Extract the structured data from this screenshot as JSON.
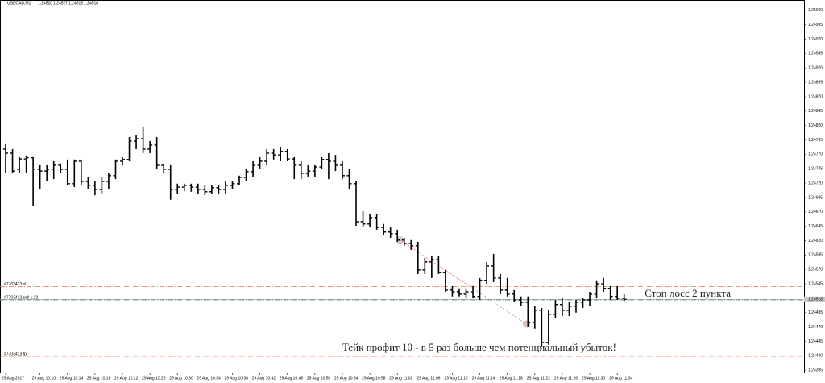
{
  "chart_data": {
    "type": "ohlc",
    "symbol": "USDCAD,M1",
    "header_ohlc": [
      "1.24520",
      "1.24527",
      "1.24515",
      "1.24518"
    ],
    "bars": [
      [
        1.24779,
        1.24789,
        1.24737,
        1.24772
      ],
      [
        1.24772,
        1.24779,
        1.24737,
        1.24741
      ],
      [
        1.24744,
        1.24765,
        1.24737,
        1.24762
      ],
      [
        1.24762,
        1.24768,
        1.24737,
        1.24764
      ],
      [
        1.24764,
        1.24765,
        1.24681,
        1.24744
      ],
      [
        1.24744,
        1.24751,
        1.24709,
        1.24741
      ],
      [
        1.24741,
        1.24751,
        1.24723,
        1.24744
      ],
      [
        1.24744,
        1.24758,
        1.24727,
        1.24751
      ],
      [
        1.24751,
        1.24754,
        1.24737,
        1.24744
      ],
      [
        1.24744,
        1.24761,
        1.24716,
        1.24719
      ],
      [
        1.24719,
        1.24761,
        1.24713,
        1.24758
      ],
      [
        1.24758,
        1.24761,
        1.24716,
        1.24723
      ],
      [
        1.24723,
        1.2473,
        1.24709,
        1.24716
      ],
      [
        1.24716,
        1.24723,
        1.24699,
        1.24709
      ],
      [
        1.24709,
        1.2473,
        1.24702,
        1.24723
      ],
      [
        1.24723,
        1.24737,
        1.24709,
        1.24733
      ],
      [
        1.24733,
        1.24761,
        1.24727,
        1.24758
      ],
      [
        1.24758,
        1.24765,
        1.24751,
        1.24761
      ],
      [
        1.24761,
        1.248,
        1.24758,
        1.24793
      ],
      [
        1.24793,
        1.24803,
        1.24779,
        1.24797
      ],
      [
        1.24797,
        1.24817,
        1.24772,
        1.24779
      ],
      [
        1.24779,
        1.24793,
        1.24772,
        1.24786
      ],
      [
        1.24786,
        1.248,
        1.24744,
        1.24751
      ],
      [
        1.24751,
        1.24751,
        1.24737,
        1.24744
      ],
      [
        1.24744,
        1.24751,
        1.24691,
        1.24709
      ],
      [
        1.24709,
        1.24719,
        1.24702,
        1.24713
      ],
      [
        1.24713,
        1.24719,
        1.24706,
        1.24716
      ],
      [
        1.24716,
        1.24719,
        1.24705,
        1.24713
      ],
      [
        1.24713,
        1.24719,
        1.24702,
        1.24709
      ],
      [
        1.24709,
        1.24716,
        1.24699,
        1.24705
      ],
      [
        1.24705,
        1.24716,
        1.24702,
        1.24712
      ],
      [
        1.24712,
        1.24716,
        1.24702,
        1.24709
      ],
      [
        1.24709,
        1.24723,
        1.24702,
        1.24716
      ],
      [
        1.24716,
        1.24723,
        1.24709,
        1.24719
      ],
      [
        1.24719,
        1.24733,
        1.24716,
        1.2473
      ],
      [
        1.2473,
        1.24744,
        1.24723,
        1.2474
      ],
      [
        1.2474,
        1.24758,
        1.2473,
        1.24751
      ],
      [
        1.24751,
        1.24765,
        1.24744,
        1.24758
      ],
      [
        1.24758,
        1.24779,
        1.24751,
        1.24772
      ],
      [
        1.24772,
        1.24779,
        1.24761,
        1.24769
      ],
      [
        1.24769,
        1.24783,
        1.24758,
        1.24775
      ],
      [
        1.24775,
        1.24779,
        1.24758,
        1.24762
      ],
      [
        1.24762,
        1.24765,
        1.24727,
        1.24751
      ],
      [
        1.24751,
        1.24758,
        1.24727,
        1.24737
      ],
      [
        1.24737,
        1.24751,
        1.2473,
        1.24741
      ],
      [
        1.24741,
        1.24751,
        1.2473,
        1.24748
      ],
      [
        1.24748,
        1.24765,
        1.24744,
        1.24761
      ],
      [
        1.24761,
        1.24772,
        1.24727,
        1.24758
      ],
      [
        1.24758,
        1.24769,
        1.24741,
        1.24751
      ],
      [
        1.24751,
        1.24758,
        1.24727,
        1.24733
      ],
      [
        1.24733,
        1.24744,
        1.24709,
        1.24719
      ],
      [
        1.24719,
        1.24723,
        1.24646,
        1.24653
      ],
      [
        1.24653,
        1.24671,
        1.24643,
        1.24649
      ],
      [
        1.24649,
        1.24667,
        1.24643,
        1.2466
      ],
      [
        1.2466,
        1.24667,
        1.24639,
        1.24643
      ],
      [
        1.24643,
        1.24649,
        1.24629,
        1.24635
      ],
      [
        1.24635,
        1.24643,
        1.24625,
        1.24632
      ],
      [
        1.24632,
        1.24639,
        1.24618,
        1.24621
      ],
      [
        1.24621,
        1.24625,
        1.24611,
        1.24615
      ],
      [
        1.24615,
        1.24621,
        1.24604,
        1.24611
      ],
      [
        1.24611,
        1.24618,
        1.24562,
        1.24569
      ],
      [
        1.24569,
        1.2459,
        1.24562,
        1.24583
      ],
      [
        1.24583,
        1.24593,
        1.24555,
        1.24587
      ],
      [
        1.24587,
        1.24593,
        1.24562,
        1.24565
      ],
      [
        1.24565,
        1.24569,
        1.24531,
        1.24534
      ],
      [
        1.24534,
        1.24541,
        1.24523,
        1.24531
      ],
      [
        1.24531,
        1.24537,
        1.24523,
        1.24527
      ],
      [
        1.24527,
        1.24537,
        1.2452,
        1.24531
      ],
      [
        1.24531,
        1.24541,
        1.2452,
        1.24523
      ],
      [
        1.24523,
        1.24555,
        1.24517,
        1.24551
      ],
      [
        1.24551,
        1.24583,
        1.24545,
        1.24576
      ],
      [
        1.24576,
        1.24597,
        1.24548,
        1.24555
      ],
      [
        1.24555,
        1.24562,
        1.24527,
        1.24534
      ],
      [
        1.24534,
        1.24555,
        1.24523,
        1.24527
      ],
      [
        1.24527,
        1.24534,
        1.24513,
        1.24517
      ],
      [
        1.24517,
        1.24523,
        1.24506,
        1.24513
      ],
      [
        1.24513,
        1.24523,
        1.24471,
        1.24478
      ],
      [
        1.24478,
        1.24506,
        1.24467,
        1.24499
      ],
      [
        1.24499,
        1.24503,
        1.24436,
        1.24443
      ],
      [
        1.24443,
        1.24499,
        1.24439,
        1.24492
      ],
      [
        1.24492,
        1.24517,
        1.24485,
        1.24509
      ],
      [
        1.24509,
        1.2452,
        1.24489,
        1.24499
      ],
      [
        1.24499,
        1.24513,
        1.24489,
        1.24506
      ],
      [
        1.24506,
        1.24517,
        1.24495,
        1.24513
      ],
      [
        1.24513,
        1.2452,
        1.24503,
        1.24517
      ],
      [
        1.24517,
        1.24531,
        1.24506,
        1.24527
      ],
      [
        1.24527,
        1.24551,
        1.2452,
        1.24545
      ],
      [
        1.24545,
        1.24555,
        1.24531,
        1.24537
      ],
      [
        1.24537,
        1.24541,
        1.24517,
        1.24523
      ],
      [
        1.24523,
        1.24541,
        1.24517,
        1.2452
      ],
      [
        1.2452,
        1.24527,
        1.24515,
        1.24518
      ]
    ],
    "xticks": [
      {
        "value": 0,
        "label": "29 Aug 2017"
      },
      {
        "value": 5,
        "label": "29 Aug 10:10"
      },
      {
        "value": 9,
        "label": "29 Aug 10:14"
      },
      {
        "value": 13,
        "label": "29 Aug 10:18"
      },
      {
        "value": 17,
        "label": "29 Aug 10:22"
      },
      {
        "value": 21,
        "label": "29 Aug 10:26"
      },
      {
        "value": 25,
        "label": "29 Aug 10:30"
      },
      {
        "value": 29,
        "label": "29 Aug 10:34"
      },
      {
        "value": 33,
        "label": "29 Aug 10:38"
      },
      {
        "value": 37,
        "label": "29 Aug 10:42"
      },
      {
        "value": 41,
        "label": "29 Aug 10:46"
      },
      {
        "value": 45,
        "label": "29 Aug 10:50"
      },
      {
        "value": 49,
        "label": "29 Aug 10:54"
      },
      {
        "value": 53,
        "label": "29 Aug 10:58"
      },
      {
        "value": 57,
        "label": "29 Aug 11:02"
      },
      {
        "value": 61,
        "label": "29 Aug 11:06"
      },
      {
        "value": 65,
        "label": "29 Aug 11:10"
      },
      {
        "value": 69,
        "label": "29 Aug 11:14"
      },
      {
        "value": 73,
        "label": "29 Aug 11:18"
      },
      {
        "value": 77,
        "label": "29 Aug 11:22"
      },
      {
        "value": 81,
        "label": "29 Aug 11:26"
      },
      {
        "value": 85,
        "label": "29 Aug 11:30"
      },
      {
        "value": 89,
        "label": "29 Aug 11:34"
      }
    ],
    "ylim": [
      1.24391,
      1.25038
    ],
    "yticks": [
      {
        "value": 1.2502,
        "label": "1.25020"
      },
      1.24995,
      {
        "value": 1.2497,
        "label": "1.24970"
      },
      1.24945,
      {
        "value": 1.2492,
        "label": "1.24920"
      },
      1.24895,
      {
        "value": 1.2487,
        "label": "1.24870"
      },
      1.24845,
      {
        "value": 1.2482,
        "label": "1.24820"
      },
      1.24795,
      {
        "value": 1.2477,
        "label": "1.24770"
      },
      1.24745,
      {
        "value": 1.2472,
        "label": "1.24720"
      },
      1.24695,
      {
        "value": 1.2467,
        "label": "1.24670"
      },
      1.24645,
      {
        "value": 1.2462,
        "label": "1.24620"
      },
      1.24595,
      {
        "value": 1.2457,
        "label": "1.24570"
      },
      1.24545,
      1.24495,
      {
        "value": 1.2447,
        "label": "1.24470"
      },
      1.24445,
      {
        "value": 1.2442,
        "label": "1.24420"
      },
      1.24395
    ],
    "current_price": 1.24518,
    "orders": [
      {
        "label": "#7703413 sl",
        "price": 1.2454,
        "color": "#d9734e"
      },
      {
        "label": "#7703413 sell 1.23",
        "price": 1.24517,
        "color": "#3f9a5a"
      },
      {
        "label": "#7703413 tp",
        "price": 1.24419,
        "color": "#d9734e"
      }
    ],
    "trade": {
      "open": {
        "index": 57.4,
        "price": 1.24621
      },
      "close": {
        "index": 75.8,
        "price": 1.24475
      },
      "color": "#d96a6a"
    },
    "annotations": [
      {
        "text": "Стоп лосс 2 пункта",
        "index": 93,
        "price": 1.24527
      },
      {
        "text": "Тейк профит 10 - в 5 раз больше чем потенциальный убыток!",
        "index": 49,
        "price": 1.24433
      }
    ],
    "bar_color": "#000000"
  }
}
